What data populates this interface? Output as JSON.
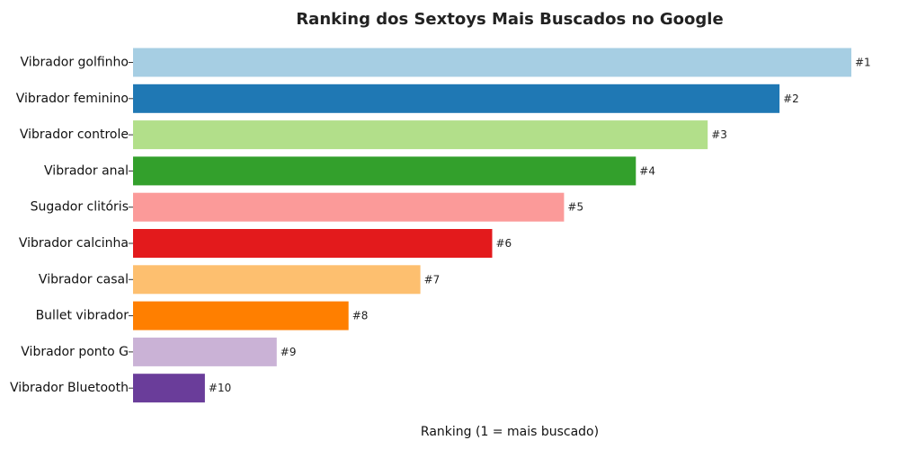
{
  "chart_data": {
    "type": "bar",
    "orientation": "horizontal",
    "title": "Ranking dos Sextoys Mais Buscados no Google",
    "xlabel": "Ranking (1 = mais buscado)",
    "ylabel": "",
    "grid": false,
    "categories": [
      "Vibrador golfinho",
      "Vibrador feminino",
      "Vibrador controle",
      "Vibrador anal",
      "Sugador clitóris",
      "Vibrador calcinha",
      "Vibrador casal",
      "Bullet vibrador",
      "Vibrador ponto G",
      "Vibrador Bluetooth"
    ],
    "values": [
      10,
      9,
      8,
      7,
      6,
      5,
      4,
      3,
      2,
      1
    ],
    "labels": [
      "#1",
      "#2",
      "#3",
      "#4",
      "#5",
      "#6",
      "#7",
      "#8",
      "#9",
      "#10"
    ],
    "xlim": [
      0,
      10
    ],
    "colors": [
      "#a6cee3",
      "#1f78b4",
      "#b2df8a",
      "#33a02c",
      "#fb9a99",
      "#e31a1c",
      "#fdbf6f",
      "#ff7f00",
      "#cab2d6",
      "#6a3d9a"
    ]
  }
}
